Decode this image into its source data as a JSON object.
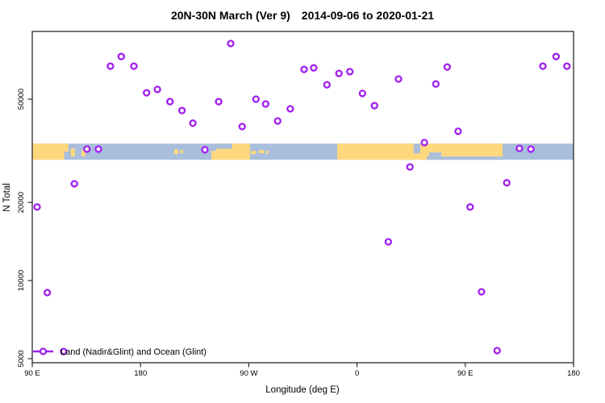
{
  "chart_data": {
    "type": "scatter",
    "title": "20N-30N March (Ver 9)  2014-09-06 to 2020-01-21",
    "xlabel": "Longitude (deg E)",
    "ylabel": "N Total",
    "legend": {
      "label": "Land (Nadir&Glint) and Ocean (Glint)",
      "position": "bottom-left",
      "marker": "open-circle-on-line"
    },
    "colors": {
      "series": "#A020F0",
      "marker_fill": "#ffffff",
      "land": "#FFD87E",
      "ocean": "#A9BEDC",
      "axis": "#2b2b2b"
    },
    "x_axis": {
      "note": "longitude unwrapped 90E..540 (= 90E eastward around globe to 180)",
      "range": [
        90,
        540
      ],
      "ticks": [
        {
          "deg": 90,
          "label": "90 E"
        },
        {
          "deg": 180,
          "label": "180"
        },
        {
          "deg": 270,
          "label": "90 W"
        },
        {
          "deg": 360,
          "label": "0"
        },
        {
          "deg": 450,
          "label": "90 E"
        },
        {
          "deg": 540,
          "label": "180"
        }
      ]
    },
    "y_axis": {
      "scale": "log10",
      "ticks": [
        {
          "value": 50000,
          "label": "50000"
        },
        {
          "value": 20000,
          "label": "20000"
        },
        {
          "value": 10000,
          "label": "10000"
        },
        {
          "value": 5000,
          "label": "5000"
        }
      ]
    },
    "map_band": {
      "value_top": 33700,
      "value_bottom": 29200,
      "patches": [
        {
          "kind": "land",
          "deg": [
            90,
            116.5
          ],
          "frac": [
            0,
            1
          ]
        },
        {
          "kind": "land",
          "deg": [
            116.5,
            120
          ],
          "frac": [
            0,
            0.5
          ]
        },
        {
          "kind": "land",
          "deg": [
            122,
            125.5
          ],
          "frac": [
            0.3,
            0.8
          ]
        },
        {
          "kind": "land",
          "deg": [
            131,
            134
          ],
          "frac": [
            0.4,
            0.8
          ]
        },
        {
          "kind": "land",
          "deg": [
            208,
            211.5
          ],
          "frac": [
            0.35,
            0.65
          ]
        },
        {
          "kind": "land",
          "deg": [
            213,
            215.5
          ],
          "frac": [
            0.4,
            0.6
          ]
        },
        {
          "kind": "land",
          "deg": [
            239,
            243
          ],
          "frac": [
            0.45,
            1
          ]
        },
        {
          "kind": "land",
          "deg": [
            243,
            271
          ],
          "frac": [
            0,
            1
          ]
        },
        {
          "kind": "ocean",
          "deg": [
            243,
            256
          ],
          "frac": [
            0,
            0.32
          ]
        },
        {
          "kind": "land",
          "deg": [
            272,
            276
          ],
          "frac": [
            0.45,
            0.65
          ]
        },
        {
          "kind": "land",
          "deg": [
            278.5,
            282.5
          ],
          "frac": [
            0.4,
            0.6
          ]
        },
        {
          "kind": "land",
          "deg": [
            284,
            286.5
          ],
          "frac": [
            0.45,
            0.6
          ]
        },
        {
          "kind": "land",
          "deg": [
            343.5,
            481
          ],
          "frac": [
            0,
            1
          ]
        },
        {
          "kind": "ocean",
          "deg": [
            407,
            412.5
          ],
          "frac": [
            0,
            0.6
          ]
        },
        {
          "kind": "ocean",
          "deg": [
            418,
            481
          ],
          "frac": [
            0.8,
            1
          ]
        },
        {
          "kind": "ocean",
          "deg": [
            420,
            430
          ],
          "frac": [
            0.55,
            0.8
          ]
        }
      ]
    },
    "series": [
      {
        "name": "Land (Nadir&Glint) and Ocean (Glint)",
        "marker": "open-circle",
        "points": [
          [
            164,
            73000
          ],
          [
            155,
            67000
          ],
          [
            174.5,
            67000
          ],
          [
            185,
            52900
          ],
          [
            194,
            54500
          ],
          [
            204.5,
            48900
          ],
          [
            214.5,
            45200
          ],
          [
            223.5,
            40400
          ],
          [
            245,
            48900
          ],
          [
            255,
            81900
          ],
          [
            264.5,
            39200
          ],
          [
            276,
            50000
          ],
          [
            284,
            47900
          ],
          [
            294,
            41200
          ],
          [
            304.5,
            45900
          ],
          [
            316,
            65100
          ],
          [
            324,
            66000
          ],
          [
            335,
            56800
          ],
          [
            345,
            62800
          ],
          [
            354,
            63800
          ],
          [
            364.5,
            52600
          ],
          [
            374.5,
            47200
          ],
          [
            394.5,
            59800
          ],
          [
            425.5,
            57200
          ],
          [
            435,
            66500
          ],
          [
            444,
            37600
          ],
          [
            514.5,
            67000
          ],
          [
            525.5,
            73000
          ],
          [
            534.5,
            67000
          ],
          [
            135.5,
            32100
          ],
          [
            145,
            32100
          ],
          [
            233.5,
            31900
          ],
          [
            416,
            34000
          ],
          [
            495,
            32300
          ],
          [
            504.5,
            32100
          ],
          [
            404,
            27400
          ],
          [
            125,
            23600
          ],
          [
            484.5,
            23800
          ],
          [
            94,
            19200
          ],
          [
            454,
            19200
          ],
          [
            386,
            14100
          ],
          [
            102.5,
            8990
          ],
          [
            463.5,
            9050
          ],
          [
            476.5,
            5370
          ],
          [
            116,
            5330
          ]
        ]
      }
    ]
  }
}
